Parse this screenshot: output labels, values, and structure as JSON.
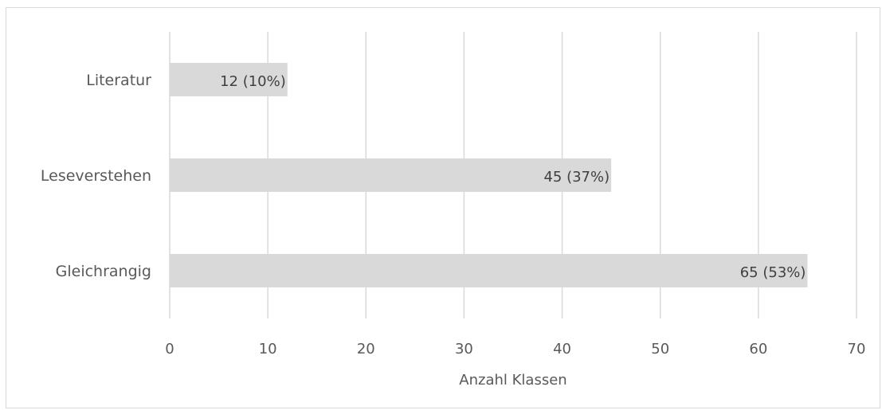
{
  "chart_data": {
    "type": "bar",
    "orientation": "horizontal",
    "categories": [
      "Gleichrangig",
      "Leseverstehen",
      "Literatur"
    ],
    "values": [
      65,
      45,
      12
    ],
    "data_labels": [
      "65 (53%)",
      "45 (37%)",
      "12 (10%)"
    ],
    "xlabel": "Anzahl Klassen",
    "ylabel": "",
    "xlim": [
      0,
      70
    ],
    "xticks": [
      "0",
      "10",
      "20",
      "30",
      "40",
      "50",
      "60",
      "70"
    ],
    "grid": "vertical",
    "legend": "none",
    "colors": {
      "bar": "#d9d9d9",
      "grid": "#d9d9d9",
      "text": "#595959"
    }
  }
}
